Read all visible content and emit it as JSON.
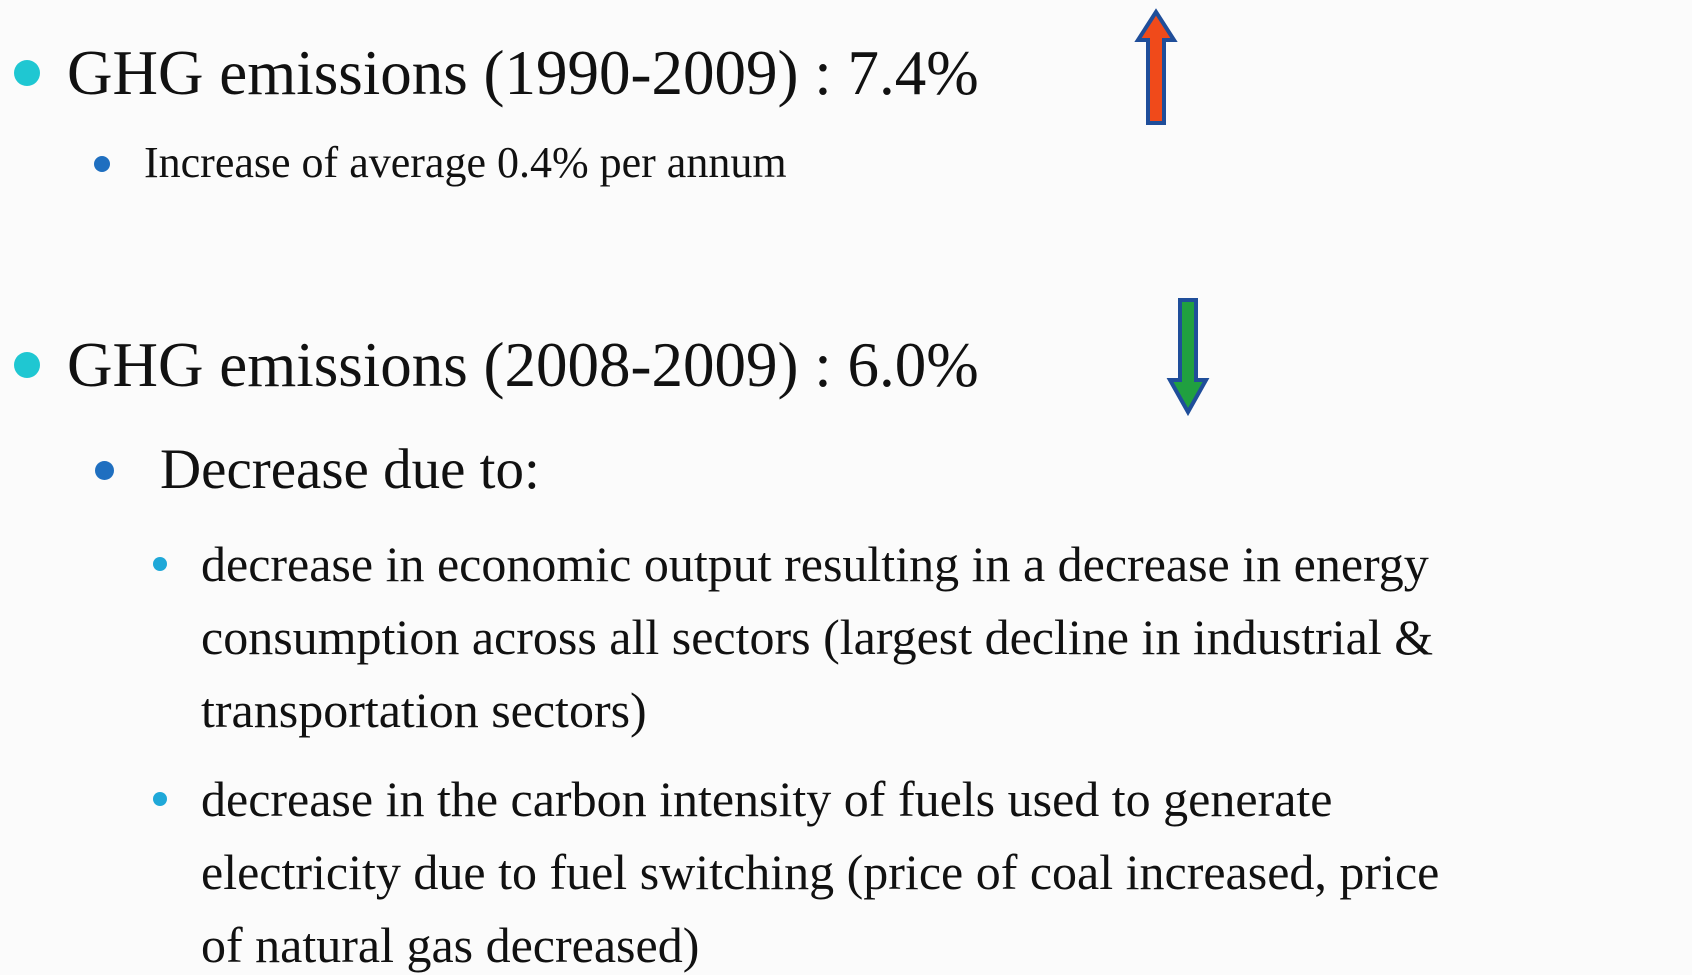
{
  "bullets": [
    {
      "text": "GHG emissions (1990-2009) : 7.4%",
      "sub": [
        {
          "text": "Increase of average 0.4% per annum"
        }
      ]
    },
    {
      "text": "GHG emissions (2008-2009) : 6.0%",
      "sub": [
        {
          "text": "Decrease due to:",
          "sub": [
            {
              "lines": [
                "decrease in economic output resulting in a decrease in energy",
                "consumption across all sectors (largest decline in industrial &",
                "transportation sectors)"
              ]
            },
            {
              "lines": [
                "decrease in the carbon intensity of fuels used to generate",
                "electricity due to fuel switching (price of coal increased, price",
                "of natural gas decreased)"
              ]
            }
          ]
        }
      ]
    }
  ]
}
